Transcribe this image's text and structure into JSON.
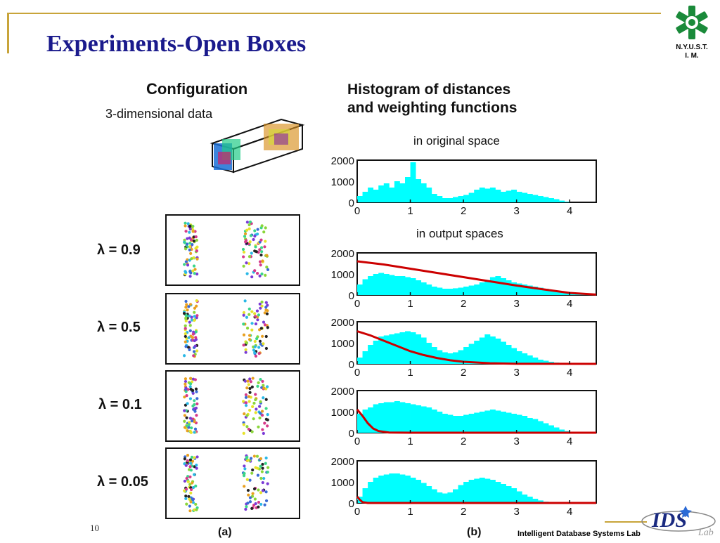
{
  "slide": {
    "title": "Experiments-Open Boxes",
    "page_number": "10",
    "footer_lab": "Intelligent Database Systems Lab",
    "logo_text_line1": "N.Y.U.S.T.",
    "logo_text_line2": "I. M.",
    "lab_logo_text": "IDS",
    "lab_logo_sub": "Lab"
  },
  "figure": {
    "config_title": "Configuration",
    "config_subtitle": "3-dimensional data",
    "hist_title_line1": "Histogram of distances",
    "hist_title_line2": "and weighting functions",
    "original_label": "in original space",
    "output_label": "in output spaces",
    "panel_a_label": "(a)",
    "panel_b_label": "(b)",
    "lambda_labels": [
      "λ = 0.9",
      "λ = 0.5",
      "λ = 0.1",
      "λ = 0.05"
    ]
  },
  "chart_data": [
    {
      "type": "bar",
      "label": "in original space",
      "x_ticks": [
        "0",
        "1",
        "2",
        "3",
        "4"
      ],
      "y_ticks": [
        "0",
        "1000",
        "2000"
      ],
      "xlim": [
        0,
        4.5
      ],
      "ylim": [
        0,
        2000
      ],
      "colors": {
        "hist": "#00ffff"
      },
      "x": [
        0.05,
        0.15,
        0.25,
        0.35,
        0.45,
        0.55,
        0.65,
        0.75,
        0.85,
        0.95,
        1.05,
        1.15,
        1.25,
        1.35,
        1.45,
        1.55,
        1.65,
        1.75,
        1.85,
        1.95,
        2.05,
        2.15,
        2.25,
        2.35,
        2.45,
        2.55,
        2.65,
        2.75,
        2.85,
        2.95,
        3.05,
        3.15,
        3.25,
        3.35,
        3.45,
        3.55,
        3.65,
        3.75,
        3.85,
        3.95
      ],
      "values": [
        300,
        500,
        700,
        600,
        800,
        900,
        700,
        1000,
        900,
        1200,
        1900,
        1100,
        900,
        700,
        400,
        300,
        200,
        200,
        250,
        300,
        350,
        450,
        600,
        700,
        650,
        700,
        600,
        500,
        550,
        600,
        500,
        450,
        400,
        350,
        300,
        250,
        200,
        150,
        80,
        30
      ]
    },
    {
      "type": "line",
      "label": "λ = 0.9",
      "x_ticks": [
        "0",
        "1",
        "2",
        "3",
        "4"
      ],
      "y_ticks": [
        "0",
        "1000",
        "2000"
      ],
      "xlim": [
        0,
        4.5
      ],
      "ylim": [
        0,
        2000
      ],
      "colors": {
        "hist": "#00ffff",
        "curve": "#cc0000"
      },
      "x": [
        0.05,
        0.15,
        0.25,
        0.35,
        0.45,
        0.55,
        0.65,
        0.75,
        0.85,
        0.95,
        1.05,
        1.15,
        1.25,
        1.35,
        1.45,
        1.55,
        1.65,
        1.75,
        1.85,
        1.95,
        2.05,
        2.15,
        2.25,
        2.35,
        2.45,
        2.55,
        2.65,
        2.75,
        2.85,
        2.95,
        3.05,
        3.15,
        3.25,
        3.35,
        3.45,
        3.55,
        3.65,
        3.75,
        3.85,
        3.95,
        4.05,
        4.15,
        4.25,
        4.35,
        4.45
      ],
      "values": [
        500,
        750,
        900,
        1000,
        1050,
        1000,
        950,
        900,
        900,
        850,
        800,
        700,
        600,
        500,
        400,
        350,
        300,
        300,
        320,
        350,
        400,
        450,
        500,
        600,
        700,
        850,
        900,
        800,
        700,
        600,
        550,
        500,
        450,
        400,
        350,
        300,
        250,
        200,
        150,
        100,
        60,
        30,
        15,
        5,
        0
      ],
      "curve_x": [
        0,
        0.5,
        1,
        1.5,
        2,
        2.5,
        3,
        3.5,
        4,
        4.5
      ],
      "curve_y": [
        1600,
        1450,
        1250,
        1050,
        850,
        650,
        450,
        270,
        100,
        20
      ]
    },
    {
      "type": "line",
      "label": "λ = 0.5",
      "x_ticks": [
        "0",
        "1",
        "2",
        "3",
        "4"
      ],
      "y_ticks": [
        "0",
        "1000",
        "2000"
      ],
      "xlim": [
        0,
        4.5
      ],
      "ylim": [
        0,
        2000
      ],
      "colors": {
        "hist": "#00ffff",
        "curve": "#cc0000"
      },
      "x": [
        0.05,
        0.15,
        0.25,
        0.35,
        0.45,
        0.55,
        0.65,
        0.75,
        0.85,
        0.95,
        1.05,
        1.15,
        1.25,
        1.35,
        1.45,
        1.55,
        1.65,
        1.75,
        1.85,
        1.95,
        2.05,
        2.15,
        2.25,
        2.35,
        2.45,
        2.55,
        2.65,
        2.75,
        2.85,
        2.95,
        3.05,
        3.15,
        3.25,
        3.35,
        3.45,
        3.55,
        3.65,
        3.75,
        3.85,
        3.95,
        4.05
      ],
      "values": [
        300,
        600,
        900,
        1100,
        1300,
        1350,
        1400,
        1450,
        1500,
        1550,
        1500,
        1400,
        1250,
        1000,
        800,
        650,
        550,
        500,
        550,
        650,
        800,
        950,
        1100,
        1250,
        1400,
        1300,
        1200,
        1050,
        900,
        750,
        600,
        500,
        400,
        300,
        200,
        150,
        100,
        60,
        30,
        10,
        0
      ],
      "curve_x": [
        0,
        0.25,
        0.5,
        0.75,
        1,
        1.25,
        1.5,
        1.75,
        2,
        2.5,
        3,
        4.5
      ],
      "curve_y": [
        1550,
        1350,
        1100,
        850,
        600,
        420,
        280,
        170,
        100,
        30,
        5,
        0
      ]
    },
    {
      "type": "line",
      "label": "λ = 0.1",
      "x_ticks": [
        "0",
        "1",
        "2",
        "3",
        "4"
      ],
      "y_ticks": [
        "0",
        "1000",
        "2000"
      ],
      "xlim": [
        0,
        4.5
      ],
      "ylim": [
        0,
        2000
      ],
      "colors": {
        "hist": "#00ffff",
        "curve": "#cc0000"
      },
      "x": [
        0.05,
        0.15,
        0.25,
        0.35,
        0.45,
        0.55,
        0.65,
        0.75,
        0.85,
        0.95,
        1.05,
        1.15,
        1.25,
        1.35,
        1.45,
        1.55,
        1.65,
        1.75,
        1.85,
        1.95,
        2.05,
        2.15,
        2.25,
        2.35,
        2.45,
        2.55,
        2.65,
        2.75,
        2.85,
        2.95,
        3.05,
        3.15,
        3.25,
        3.35,
        3.45,
        3.55,
        3.65,
        3.75,
        3.85,
        3.95,
        4.05,
        4.15,
        4.25
      ],
      "values": [
        900,
        1100,
        1200,
        1350,
        1400,
        1450,
        1450,
        1500,
        1450,
        1400,
        1350,
        1300,
        1250,
        1200,
        1100,
        1000,
        900,
        850,
        800,
        800,
        850,
        900,
        950,
        1000,
        1050,
        1100,
        1050,
        1000,
        950,
        900,
        850,
        800,
        700,
        650,
        550,
        450,
        350,
        250,
        150,
        80,
        40,
        15,
        0
      ],
      "curve_x": [
        0,
        0.1,
        0.2,
        0.3,
        0.4,
        0.6,
        1,
        4.5
      ],
      "curve_y": [
        1100,
        800,
        450,
        200,
        80,
        10,
        0,
        0
      ]
    },
    {
      "type": "line",
      "label": "λ = 0.05",
      "x_ticks": [
        "0",
        "1",
        "2",
        "3",
        "4"
      ],
      "y_ticks": [
        "0",
        "1000",
        "2000"
      ],
      "xlim": [
        0,
        4.5
      ],
      "ylim": [
        0,
        2000
      ],
      "colors": {
        "hist": "#00ffff",
        "curve": "#cc0000"
      },
      "x": [
        0.05,
        0.15,
        0.25,
        0.35,
        0.45,
        0.55,
        0.65,
        0.75,
        0.85,
        0.95,
        1.05,
        1.15,
        1.25,
        1.35,
        1.45,
        1.55,
        1.65,
        1.75,
        1.85,
        1.95,
        2.05,
        2.15,
        2.25,
        2.35,
        2.45,
        2.55,
        2.65,
        2.75,
        2.85,
        2.95,
        3.05,
        3.15,
        3.25,
        3.35,
        3.45,
        3.55,
        3.65,
        3.75,
        3.85,
        3.95,
        4.05
      ],
      "values": [
        300,
        700,
        1000,
        1200,
        1300,
        1350,
        1400,
        1400,
        1350,
        1300,
        1200,
        1100,
        950,
        800,
        650,
        500,
        450,
        500,
        650,
        850,
        1000,
        1100,
        1150,
        1200,
        1150,
        1100,
        1000,
        900,
        800,
        700,
        550,
        400,
        300,
        200,
        120,
        60,
        30,
        10,
        5,
        0,
        0
      ],
      "curve_x": [
        0,
        0.05,
        0.1,
        0.2,
        4.5
      ],
      "curve_y": [
        300,
        150,
        40,
        0,
        0
      ]
    }
  ]
}
